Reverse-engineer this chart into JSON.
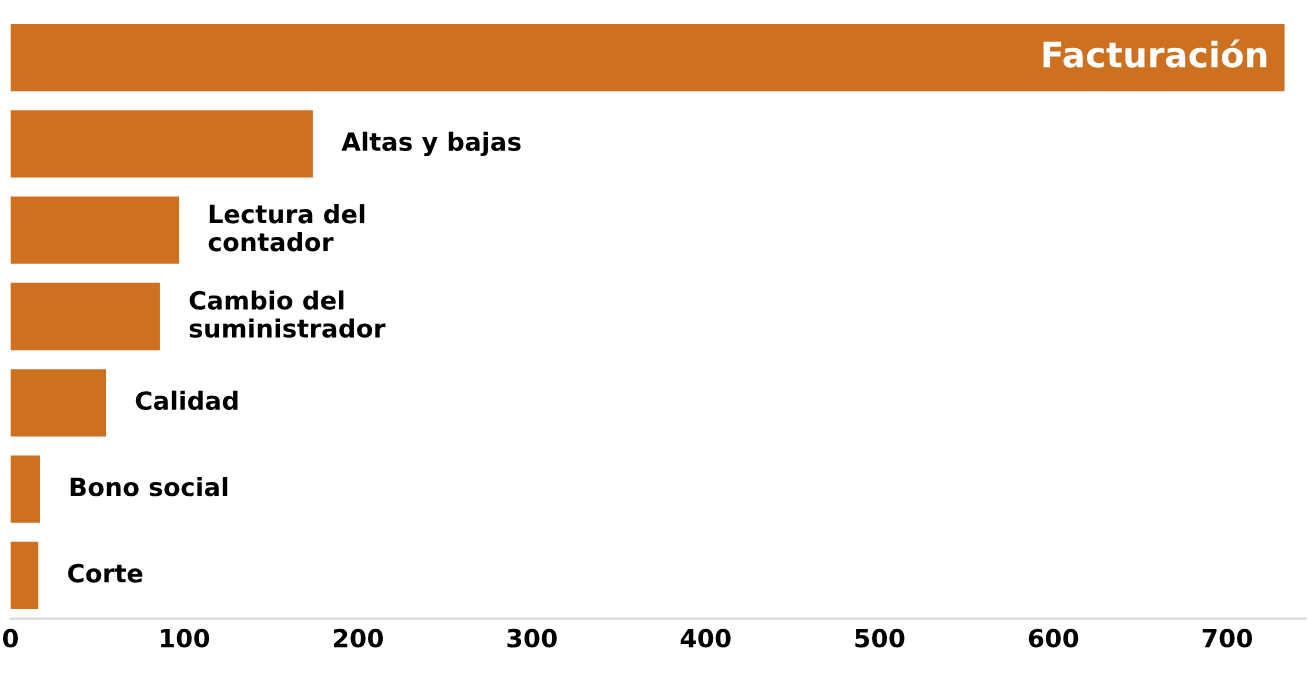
{
  "chart_data": {
    "type": "bar",
    "orientation": "horizontal",
    "categories": [
      "Facturación",
      "Altas y bajas",
      "Lectura del\ncontador",
      "Cambio del\nsuministrador",
      "Calidad",
      "Bono social",
      "Corte"
    ],
    "values": [
      733,
      174,
      97,
      86,
      55,
      17,
      16
    ],
    "color": "#cd7020",
    "xlim": [
      0,
      745
    ],
    "xticks": [
      0,
      100,
      200,
      300,
      400,
      500,
      600,
      700
    ],
    "grid": false,
    "legend": false
  }
}
